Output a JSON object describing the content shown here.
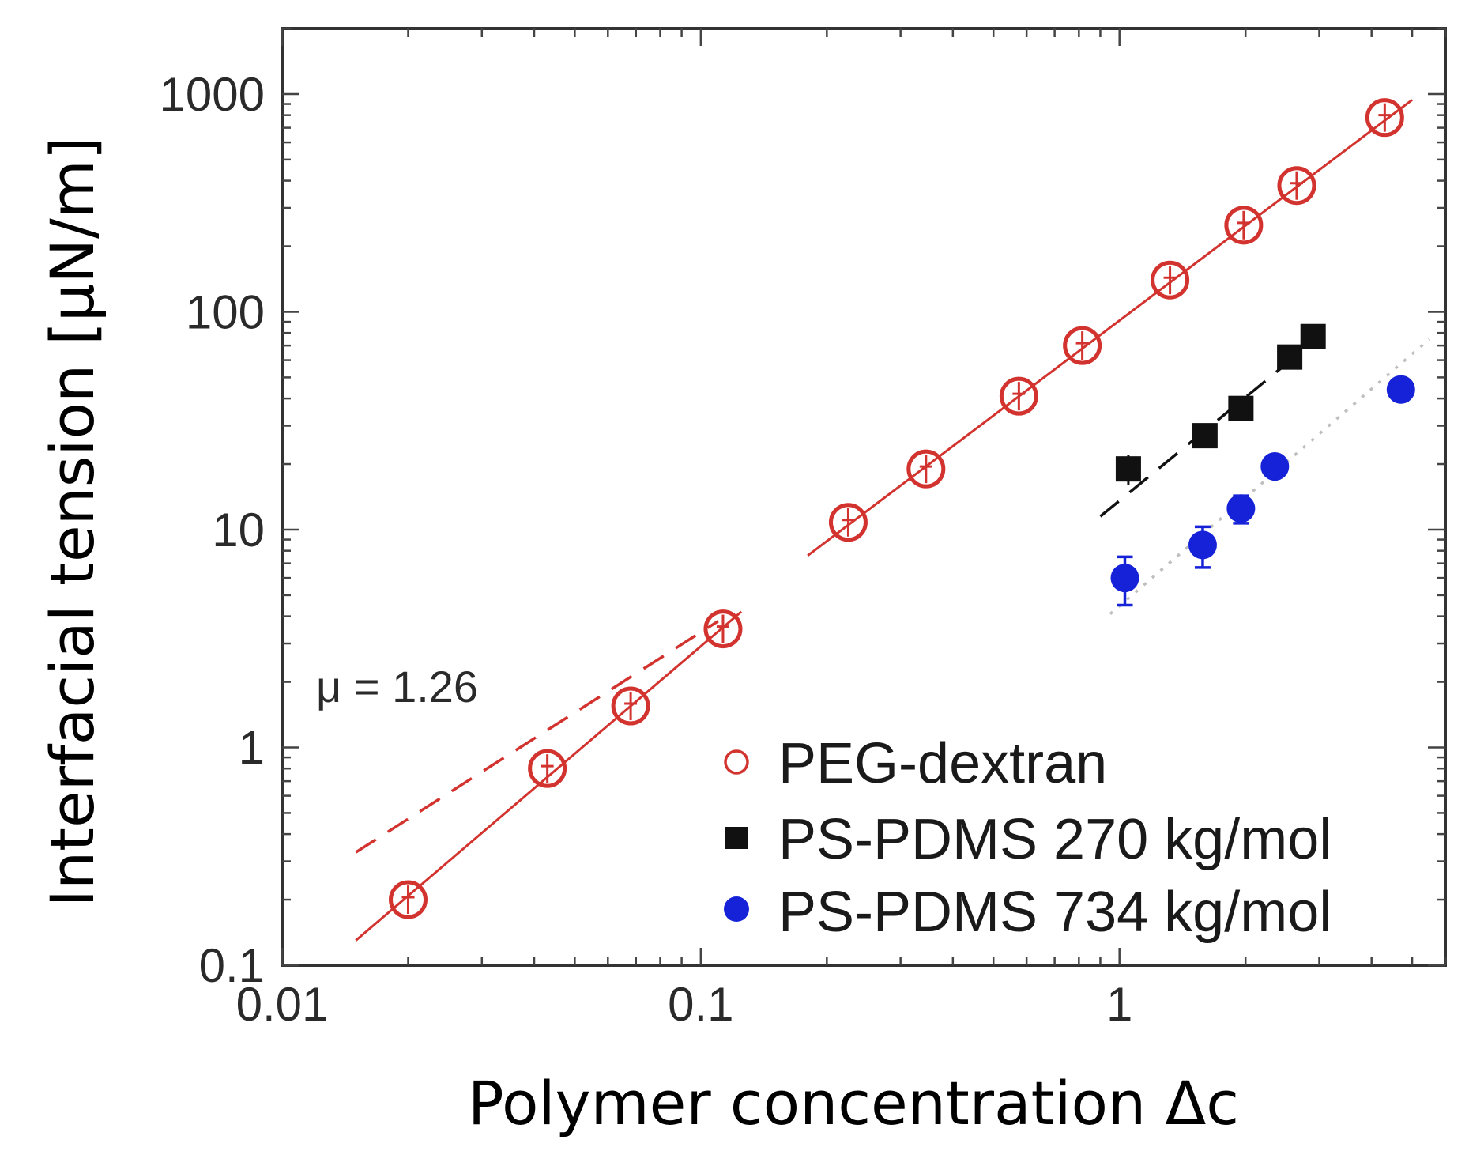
{
  "chart_data": {
    "type": "scatter",
    "xscale": "log",
    "yscale": "log",
    "xlim": [
      0.01,
      6
    ],
    "ylim": [
      0.1,
      2000
    ],
    "xlabel": "Polymer concentration Δc",
    "ylabel": "Interfacial tension  [μN/m]",
    "xticks": [
      {
        "value": 0.01,
        "label": "0.01"
      },
      {
        "value": 0.1,
        "label": "0.1"
      },
      {
        "value": 1,
        "label": "1"
      }
    ],
    "yticks": [
      {
        "value": 0.1,
        "label": "0.1"
      },
      {
        "value": 1,
        "label": "1"
      },
      {
        "value": 10,
        "label": "10"
      },
      {
        "value": 100,
        "label": "100"
      },
      {
        "value": 1000,
        "label": "1000"
      }
    ],
    "series": [
      {
        "name": "PEG-dextran",
        "marker": "open-circle",
        "color": "#d2332e",
        "points": [
          {
            "x": 0.02,
            "y": 0.2
          },
          {
            "x": 0.043,
            "y": 0.8
          },
          {
            "x": 0.068,
            "y": 1.55
          },
          {
            "x": 0.113,
            "y": 3.5
          },
          {
            "x": 0.225,
            "y": 10.8
          },
          {
            "x": 0.345,
            "y": 19
          },
          {
            "x": 0.575,
            "y": 41
          },
          {
            "x": 0.815,
            "y": 70
          },
          {
            "x": 1.32,
            "y": 140
          },
          {
            "x": 1.98,
            "y": 250
          },
          {
            "x": 2.65,
            "y": 380
          },
          {
            "x": 4.3,
            "y": 780
          }
        ]
      },
      {
        "name": "PS-PDMS 270 kg/mol",
        "marker": "filled-square",
        "color": "#111111",
        "points": [
          {
            "x": 1.05,
            "y": 19,
            "yerr": 3
          },
          {
            "x": 1.6,
            "y": 27
          },
          {
            "x": 1.95,
            "y": 36
          },
          {
            "x": 2.55,
            "y": 62
          },
          {
            "x": 2.9,
            "y": 77
          }
        ]
      },
      {
        "name": "PS-PDMS 734 kg/mol",
        "marker": "filled-circle",
        "color": "#1522d8",
        "points": [
          {
            "x": 1.03,
            "y": 6,
            "yerr": 1.5
          },
          {
            "x": 1.58,
            "y": 8.5,
            "yerr": 1.8
          },
          {
            "x": 1.95,
            "y": 12.5,
            "yerr": 1.8
          },
          {
            "x": 2.35,
            "y": 19.5
          },
          {
            "x": 4.7,
            "y": 44,
            "yerr": 5
          }
        ]
      }
    ],
    "fits": [
      {
        "name": "PEG-dextran fit (dilute)",
        "color": "#d2332e",
        "style": "solid",
        "x": [
          0.015,
          0.125
        ],
        "y": [
          0.13,
          4.2
        ]
      },
      {
        "name": "PEG-dextran fit (concentrated)",
        "color": "#d2332e",
        "style": "solid",
        "x": [
          0.18,
          5.0
        ],
        "y": [
          7.6,
          940
        ]
      },
      {
        "name": "μ = 1.26 reference",
        "color": "#d2332e",
        "style": "dashed",
        "x": [
          0.015,
          0.11
        ],
        "y": [
          0.33,
          3.8
        ]
      },
      {
        "name": "PS-PDMS 270 fit",
        "color": "#111111",
        "style": "dashed",
        "x": [
          0.9,
          3.2
        ],
        "y": [
          11.5,
          85
        ]
      },
      {
        "name": "PS-PDMS 734 fit",
        "color": "#bfbfbf",
        "style": "dotted",
        "x": [
          0.95,
          5.5
        ],
        "y": [
          4.1,
          75
        ]
      }
    ],
    "annotation": "μ = 1.26",
    "legend": {
      "placement": "bottom-right",
      "entries": [
        "PEG-dextran",
        "PS-PDMS 270 kg/mol",
        "PS-PDMS 734 kg/mol"
      ]
    }
  }
}
